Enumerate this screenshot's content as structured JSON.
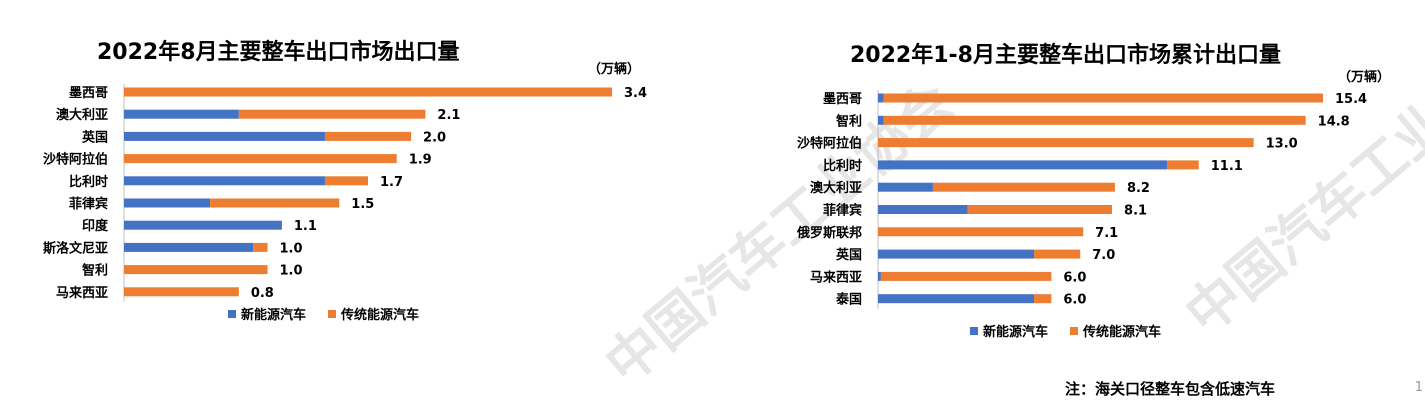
{
  "colors": {
    "new_energy": "#4472C4",
    "traditional": "#ED7D31",
    "watermark": "#e6e6e6"
  },
  "watermark_text": "中国汽车工业协会",
  "footnote": "注：海关口径整车包含低速汽车",
  "page_number": "1",
  "chart_data": [
    {
      "type": "bar",
      "orientation": "horizontal",
      "stacked": true,
      "title": "2022年8月主要整车出口市场出口量",
      "unit": "（万辆）",
      "categories": [
        "墨西哥",
        "澳大利亚",
        "英国",
        "沙特阿拉伯",
        "比利时",
        "菲律宾",
        "印度",
        "斯洛文尼亚",
        "智利",
        "马来西亚"
      ],
      "series": [
        {
          "name": "新能源汽车",
          "values": [
            0.0,
            0.8,
            1.4,
            0.0,
            1.4,
            0.6,
            1.1,
            0.9,
            0.0,
            0.0
          ]
        },
        {
          "name": "传统能源汽车",
          "values": [
            3.4,
            1.3,
            0.6,
            1.9,
            0.3,
            0.9,
            0.0,
            0.1,
            1.0,
            0.8
          ]
        }
      ],
      "totals": [
        "3.4",
        "2.1",
        "2.0",
        "1.9",
        "1.7",
        "1.5",
        "1.1",
        "1.0",
        "1.0",
        "0.8"
      ],
      "xlim": [
        0,
        3.4
      ],
      "legend": "bottom"
    },
    {
      "type": "bar",
      "orientation": "horizontal",
      "stacked": true,
      "title": "2022年1-8月主要整车出口市场累计出口量",
      "unit": "（万辆）",
      "categories": [
        "墨西哥",
        "智利",
        "沙特阿拉伯",
        "比利时",
        "澳大利亚",
        "菲律宾",
        "俄罗斯联邦",
        "英国",
        "马来西亚",
        "泰国"
      ],
      "series": [
        {
          "name": "新能源汽车",
          "values": [
            0.2,
            0.2,
            0.0,
            10.0,
            1.9,
            3.1,
            0.0,
            5.4,
            0.1,
            5.4
          ]
        },
        {
          "name": "传统能源汽车",
          "values": [
            15.2,
            14.6,
            13.0,
            1.1,
            6.3,
            5.0,
            7.1,
            1.6,
            5.9,
            0.6
          ]
        }
      ],
      "totals": [
        "15.4",
        "14.8",
        "13.0",
        "11.1",
        "8.2",
        "8.1",
        "7.1",
        "7.0",
        "6.0",
        "6.0"
      ],
      "xlim": [
        0,
        15.4
      ],
      "legend": "bottom"
    }
  ]
}
